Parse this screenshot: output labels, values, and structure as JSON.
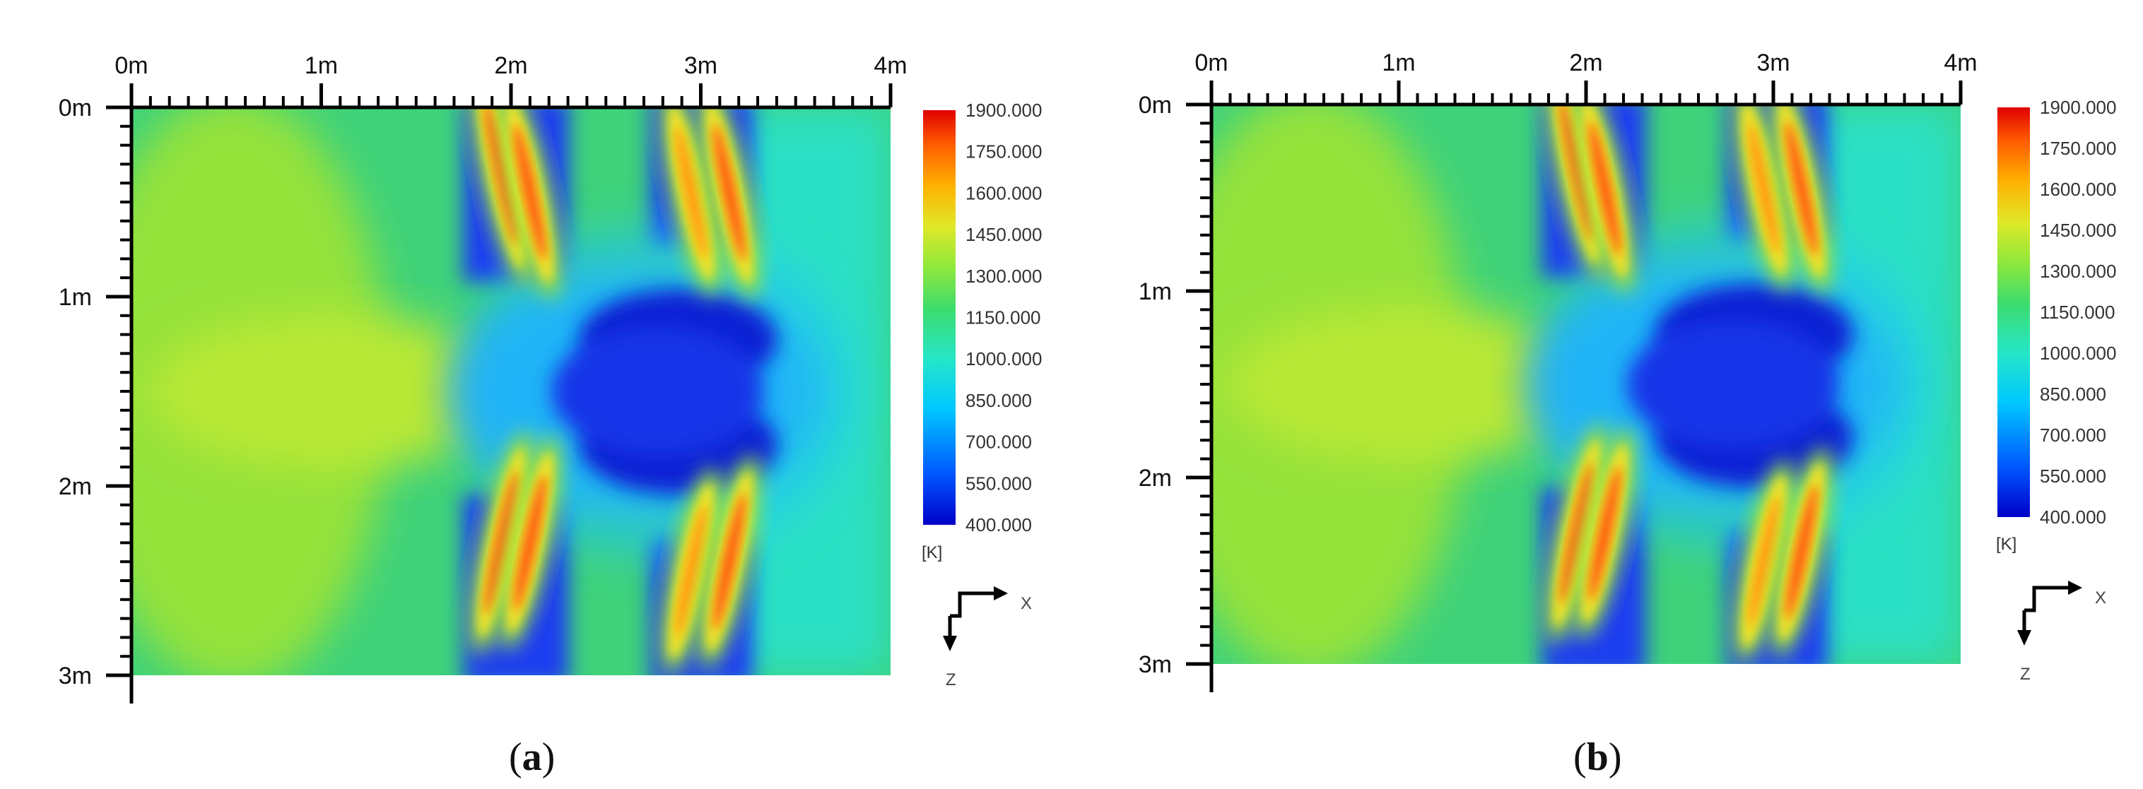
{
  "figure": {
    "panels": [
      {
        "id": "a",
        "caption_label": "a",
        "axis_x_ticks": [
          "0m",
          "1m",
          "2m",
          "3m",
          "4m"
        ],
        "axis_z_ticks": [
          "0m",
          "1m",
          "2m",
          "3m"
        ],
        "colorbar_ticks": [
          "1900.000",
          "1750.000",
          "1600.000",
          "1450.000",
          "1300.000",
          "1150.000",
          "1000.000",
          "850.000",
          "700.000",
          "550.000",
          "400.000"
        ],
        "unit_label": "[K]",
        "orient_x": "X",
        "orient_z": "Z"
      },
      {
        "id": "b",
        "caption_label": "b",
        "axis_x_ticks": [
          "0m",
          "1m",
          "2m",
          "3m",
          "4m"
        ],
        "axis_z_ticks": [
          "0m",
          "1m",
          "2m",
          "3m"
        ],
        "colorbar_ticks": [
          "1900.000",
          "1750.000",
          "1600.000",
          "1450.000",
          "1300.000",
          "1150.000",
          "1000.000",
          "850.000",
          "700.000",
          "550.000",
          "400.000"
        ],
        "unit_label": "[K]",
        "orient_x": "X",
        "orient_z": "Z"
      }
    ]
  },
  "chart_data": [
    {
      "type": "heatmap",
      "panel": "a",
      "xlabel": "",
      "ylabel": "",
      "xlim": [
        0,
        4
      ],
      "zlim": [
        0,
        3
      ],
      "x_unit": "m",
      "z_unit": "m",
      "value_range": [
        400,
        1900
      ],
      "value_unit": "K",
      "colormap": [
        "#0000c8",
        "#0055ff",
        "#00c8ff",
        "#25e6c8",
        "#3cdc6e",
        "#8ee83c",
        "#dfe828",
        "#ffb000",
        "#ff5a00",
        "#e00000"
      ],
      "colors": {
        "background_region": "#3ccf6a",
        "cold_region": "#1238f0",
        "hot_streaks": "#ff7a10"
      },
      "regions": [
        {
          "name": "left warm zone",
          "x": [
            0.0,
            1.6
          ],
          "z": [
            0.0,
            3.0
          ],
          "value": 1250
        },
        {
          "name": "upper cold band",
          "x": [
            1.75,
            2.25
          ],
          "z": [
            0.0,
            0.9
          ],
          "value": 550
        },
        {
          "name": "upper cold band",
          "x": [
            2.75,
            3.25
          ],
          "z": [
            0.0,
            0.8
          ],
          "value": 550
        },
        {
          "name": "central cold core",
          "x": [
            2.3,
            3.8
          ],
          "z": [
            1.0,
            2.0
          ],
          "value": 480
        },
        {
          "name": "lower cold band",
          "x": [
            1.75,
            2.25
          ],
          "z": [
            2.1,
            3.0
          ],
          "value": 550
        },
        {
          "name": "lower cold band",
          "x": [
            2.75,
            3.25
          ],
          "z": [
            2.2,
            3.0
          ],
          "value": 550
        }
      ],
      "hotspots": [
        {
          "x": 1.95,
          "z": 0.35,
          "value": 1650
        },
        {
          "x": 2.1,
          "z": 0.45,
          "value": 1500
        },
        {
          "x": 2.95,
          "z": 0.45,
          "value": 1400
        },
        {
          "x": 3.15,
          "z": 0.45,
          "value": 1500
        },
        {
          "x": 1.95,
          "z": 2.3,
          "value": 1650
        },
        {
          "x": 2.1,
          "z": 2.3,
          "value": 1500
        },
        {
          "x": 2.95,
          "z": 2.45,
          "value": 1400
        },
        {
          "x": 3.15,
          "z": 2.4,
          "value": 1500
        }
      ],
      "grid": false,
      "legend": "right (colorbar)"
    },
    {
      "type": "heatmap",
      "panel": "b",
      "xlabel": "",
      "ylabel": "",
      "xlim": [
        0,
        4
      ],
      "zlim": [
        0,
        3
      ],
      "x_unit": "m",
      "z_unit": "m",
      "value_range": [
        400,
        1900
      ],
      "value_unit": "K",
      "colormap": [
        "#0000c8",
        "#0055ff",
        "#00c8ff",
        "#25e6c8",
        "#3cdc6e",
        "#8ee83c",
        "#dfe828",
        "#ffb000",
        "#ff5a00",
        "#e00000"
      ],
      "colors": {
        "background_region": "#3ccf6a",
        "cold_region": "#1238f0",
        "hot_streaks": "#ff7a10"
      },
      "regions": [
        {
          "name": "left warm zone",
          "x": [
            0.0,
            1.6
          ],
          "z": [
            0.0,
            3.0
          ],
          "value": 1250
        },
        {
          "name": "upper cold band",
          "x": [
            1.75,
            2.25
          ],
          "z": [
            0.0,
            0.9
          ],
          "value": 550
        },
        {
          "name": "upper cold band",
          "x": [
            2.75,
            3.25
          ],
          "z": [
            0.0,
            0.8
          ],
          "value": 550
        },
        {
          "name": "central cold core",
          "x": [
            2.3,
            3.8
          ],
          "z": [
            1.0,
            2.0
          ],
          "value": 480
        },
        {
          "name": "lower cold band",
          "x": [
            1.75,
            2.25
          ],
          "z": [
            2.1,
            3.0
          ],
          "value": 550
        },
        {
          "name": "lower cold band",
          "x": [
            2.75,
            3.25
          ],
          "z": [
            2.2,
            3.0
          ],
          "value": 550
        }
      ],
      "hotspots": [
        {
          "x": 1.95,
          "z": 0.35,
          "value": 1650
        },
        {
          "x": 2.1,
          "z": 0.45,
          "value": 1500
        },
        {
          "x": 2.95,
          "z": 0.45,
          "value": 1400
        },
        {
          "x": 3.15,
          "z": 0.45,
          "value": 1500
        },
        {
          "x": 1.95,
          "z": 2.3,
          "value": 1650
        },
        {
          "x": 2.1,
          "z": 2.3,
          "value": 1500
        },
        {
          "x": 2.95,
          "z": 2.45,
          "value": 1400
        },
        {
          "x": 3.15,
          "z": 2.4,
          "value": 1500
        }
      ],
      "grid": false,
      "legend": "right (colorbar)"
    }
  ]
}
